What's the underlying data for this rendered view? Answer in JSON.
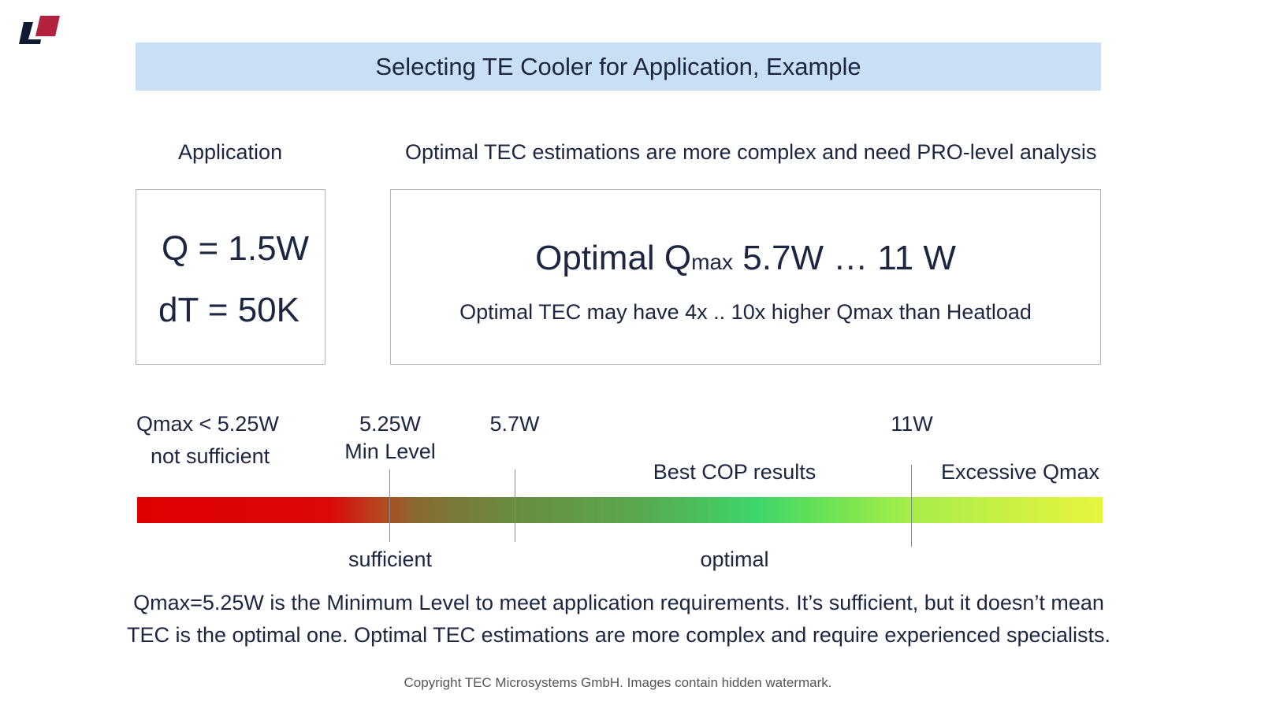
{
  "title": "Selecting TE Cooler for Application, Example",
  "application": {
    "heading": "Application",
    "q": "Q = 1.5W",
    "dt": "dT = 50K"
  },
  "optimal": {
    "heading": "Optimal TEC estimations are more complex and need PRO-level analysis",
    "range_prefix": "Optimal Q",
    "range_sub": "max",
    "range_value": " 5.7W … 11 W",
    "note": "Optimal TEC may have 4x .. 10x higher Qmax than Heatload"
  },
  "scale": {
    "insufficient_value": "Qmax < 5.25W",
    "insufficient_label": "not sufficient",
    "min_value": "5.25W",
    "min_label": "Min Level",
    "opt_start": "5.7W",
    "opt_end": "11W",
    "best_label": "Best COP results",
    "excessive_label": "Excessive Qmax",
    "sufficient_label": "sufficient",
    "optimal_label": "optimal",
    "colors": {
      "low": "#e00000",
      "mid": "#3dd56a",
      "high": "#e8f53e"
    }
  },
  "conclusion": {
    "line1": "Qmax=5.25W is the Minimum Level to meet application requirements. It’s sufficient, but it doesn’t mean",
    "line2": "TEC is the optimal one. Optimal TEC estimations are more complex and require experienced specialists."
  },
  "footer": "Copyright TEC Microsystems GmbH. Images contain hidden watermark.",
  "brand": {
    "dark": "#111a33",
    "red": "#b3233f"
  }
}
